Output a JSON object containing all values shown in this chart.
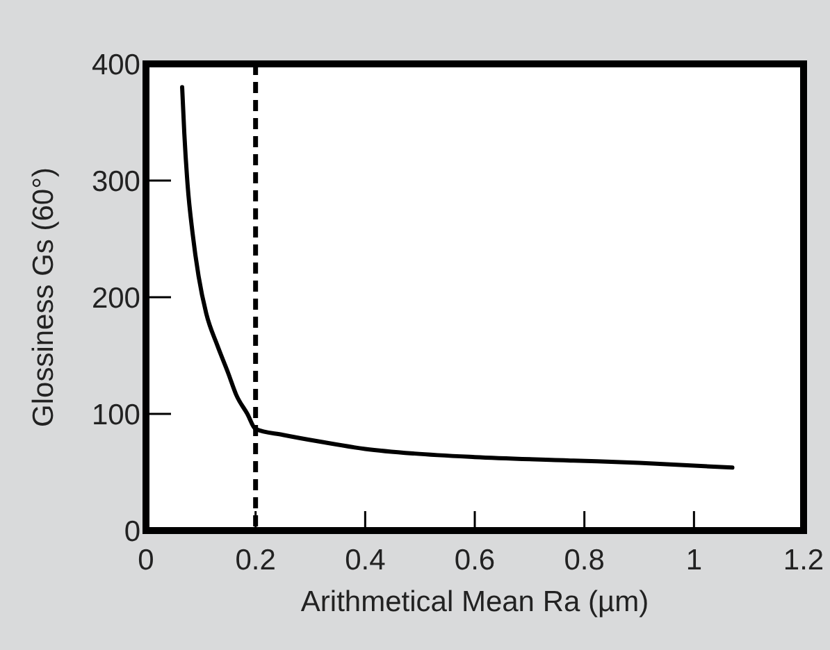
{
  "chart_data": {
    "type": "line",
    "xlabel": "Arithmetical Mean Ra (µm)",
    "ylabel": "Glossiness Gs (60°)",
    "xlim": [
      0,
      1.2
    ],
    "ylim": [
      0,
      400
    ],
    "xticks": [
      0,
      0.2,
      0.4,
      0.6,
      0.8,
      1,
      1.2
    ],
    "yticks": [
      0,
      100,
      200,
      300,
      400
    ],
    "grid": false,
    "marker": "none",
    "line_style": "solid",
    "series": [
      {
        "color": "#000000",
        "x": [
          0.066,
          0.07,
          0.076,
          0.085,
          0.096,
          0.11,
          0.13,
          0.15,
          0.165,
          0.185,
          0.2,
          0.25,
          0.32,
          0.4,
          0.49,
          0.6,
          0.78,
          0.9,
          1.07
        ],
        "values": [
          380,
          340,
          296,
          255,
          218,
          186,
          159,
          135,
          116,
          100,
          87,
          82,
          76,
          70,
          66,
          63,
          60,
          58,
          54
        ]
      }
    ],
    "ref_lines": [
      {
        "axis": "x",
        "value": 0.2,
        "line_style": "dashed",
        "color": "#000000"
      }
    ]
  }
}
